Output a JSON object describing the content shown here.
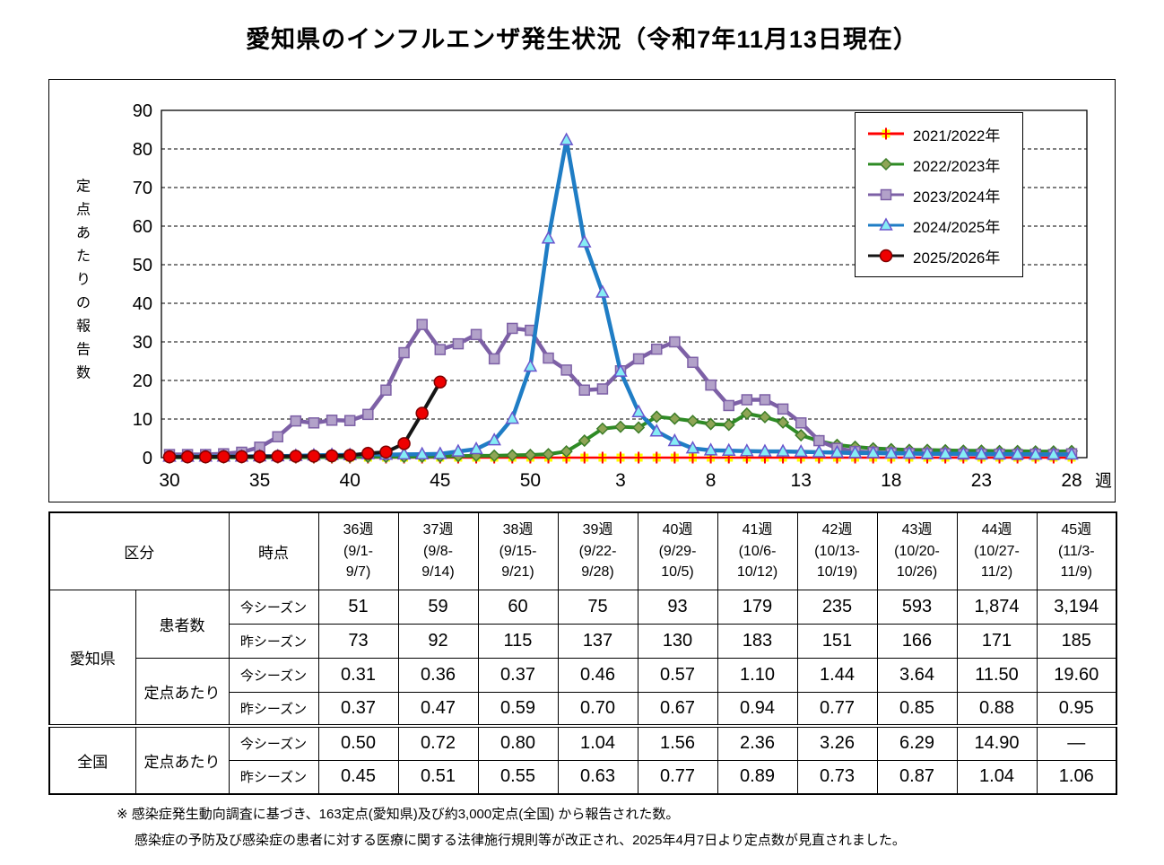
{
  "title": "愛知県のインフルエンザ発生状況（令和7年11月13日現在）",
  "chart_data": {
    "type": "line",
    "grid": "horizontal-dashed",
    "legend_position": "top-right",
    "y_axis": {
      "label": "定点あたりの報告数",
      "min": 0,
      "max": 90,
      "tick_step": 10
    },
    "x_axis": {
      "unit_label": "週",
      "weeks": [
        30,
        31,
        32,
        33,
        34,
        35,
        36,
        37,
        38,
        39,
        40,
        41,
        42,
        43,
        44,
        45,
        46,
        47,
        48,
        49,
        50,
        51,
        52,
        1,
        2,
        3,
        4,
        5,
        6,
        7,
        8,
        9,
        10,
        11,
        12,
        13,
        14,
        15,
        16,
        17,
        18,
        19,
        20,
        21,
        22,
        23,
        24,
        25,
        26,
        27,
        28
      ],
      "major_tick_labels": [
        "30",
        "35",
        "40",
        "45",
        "50",
        "3",
        "8",
        "13",
        "18",
        "23",
        "28"
      ]
    },
    "series": [
      {
        "name": "2021/2022年",
        "line_color": "#FF0000",
        "marker": "plus-square",
        "marker_fill": "#FFFF00",
        "marker_stroke": "#FF0000",
        "line_width": 2.5,
        "values": [
          0,
          0,
          0,
          0,
          0,
          0,
          0,
          0,
          0,
          0,
          0,
          0,
          0,
          0,
          0,
          0,
          0,
          0,
          0,
          0,
          0,
          0,
          0,
          0,
          0,
          0,
          0,
          0,
          0,
          0,
          0,
          0,
          0,
          0,
          0,
          0,
          0,
          0,
          0,
          0,
          0,
          0,
          0,
          0,
          0,
          0,
          0,
          0,
          0,
          0,
          0
        ]
      },
      {
        "name": "2022/2023年",
        "line_color": "#2E8B25",
        "marker": "diamond",
        "marker_fill": "#8FA556",
        "marker_stroke": "#3C7D28",
        "line_width": 4,
        "values": [
          0.05,
          0.05,
          0.05,
          0.05,
          0.1,
          0.1,
          0.1,
          0.1,
          0.1,
          0.15,
          0.15,
          0.2,
          0.2,
          0.2,
          0.25,
          0.3,
          0.4,
          0.5,
          0.5,
          0.6,
          0.7,
          0.9,
          1.6,
          4.4,
          7.5,
          8.0,
          7.8,
          10.6,
          10.1,
          9.5,
          8.7,
          8.5,
          11.4,
          10.5,
          9.1,
          5.8,
          4.3,
          3.3,
          2.8,
          2.4,
          2.2,
          2.0,
          2.0,
          1.9,
          1.8,
          1.8,
          1.7,
          1.7,
          1.6,
          1.6,
          1.7
        ]
      },
      {
        "name": "2023/2024年",
        "line_color": "#7D60A6",
        "marker": "square",
        "marker_fill": "#B2A1C9",
        "marker_stroke": "#7D60A6",
        "line_width": 4.5,
        "values": [
          0.8,
          0.8,
          0.8,
          1.0,
          1.4,
          2.7,
          5.4,
          9.5,
          9.0,
          9.7,
          9.6,
          11.2,
          17.5,
          27.2,
          34.5,
          28.0,
          29.5,
          31.9,
          25.6,
          33.5,
          33.0,
          25.8,
          22.7,
          17.5,
          17.8,
          22.5,
          25.6,
          28.1,
          30.0,
          24.7,
          18.8,
          13.5,
          15.0,
          15.0,
          12.6,
          9.0,
          4.4,
          2.4,
          1.6,
          1.4,
          1.2,
          1.1,
          1.0,
          1.0,
          0.9,
          0.9,
          0.9,
          0.8,
          0.9,
          0.8,
          1.0
        ]
      },
      {
        "name": "2024/2025年",
        "line_color": "#1F7DC5",
        "marker": "triangle",
        "marker_fill": "#85EDF5",
        "marker_stroke": "#6A55CC",
        "line_width": 4.5,
        "values": [
          0.25,
          0.25,
          0.3,
          0.3,
          0.3,
          0.35,
          0.37,
          0.47,
          0.59,
          0.7,
          0.67,
          0.94,
          0.77,
          0.85,
          0.88,
          0.95,
          1.6,
          2.2,
          4.5,
          10.1,
          23.6,
          56.8,
          82.3,
          55.8,
          42.8,
          22.3,
          11.8,
          6.8,
          4.3,
          2.4,
          1.9,
          1.8,
          1.7,
          1.6,
          1.6,
          1.5,
          1.4,
          1.3,
          1.2,
          1.2,
          1.1,
          1.1,
          1.0,
          1.0,
          1.0,
          0.9,
          0.9,
          0.9,
          0.8,
          0.8,
          0.8
        ]
      },
      {
        "name": "2025/2026年",
        "line_color": "#151515",
        "marker": "circle",
        "marker_fill": "#EE0000",
        "marker_stroke": "#7F0000",
        "line_width": 4,
        "values": [
          0.2,
          0.2,
          0.2,
          0.25,
          0.25,
          0.3,
          0.31,
          0.36,
          0.37,
          0.46,
          0.57,
          1.1,
          1.44,
          3.64,
          11.5,
          19.6,
          null,
          null,
          null,
          null,
          null,
          null,
          null,
          null,
          null,
          null,
          null,
          null,
          null,
          null,
          null,
          null,
          null,
          null,
          null,
          null,
          null,
          null,
          null,
          null,
          null,
          null,
          null,
          null,
          null,
          null,
          null,
          null,
          null,
          null,
          null
        ]
      }
    ]
  },
  "table": {
    "header": {
      "kubun": "区分",
      "jiten": "時点",
      "weeks": [
        {
          "week": "36週",
          "d1": "(9/1-",
          "d2": "9/7)"
        },
        {
          "week": "37週",
          "d1": "(9/8-",
          "d2": "9/14)"
        },
        {
          "week": "38週",
          "d1": "(9/15-",
          "d2": "9/21)"
        },
        {
          "week": "39週",
          "d1": "(9/22-",
          "d2": "9/28)"
        },
        {
          "week": "40週",
          "d1": "(9/29-",
          "d2": "10/5)"
        },
        {
          "week": "41週",
          "d1": "(10/6-",
          "d2": "10/12)"
        },
        {
          "week": "42週",
          "d1": "(10/13-",
          "d2": "10/19)"
        },
        {
          "week": "43週",
          "d1": "(10/20-",
          "d2": "10/26)"
        },
        {
          "week": "44週",
          "d1": "(10/27-",
          "d2": "11/2)"
        },
        {
          "week": "45週",
          "d1": "(11/3-",
          "d2": "11/9)"
        }
      ]
    },
    "regions": [
      {
        "name": "愛知県",
        "groups": [
          {
            "name": "患者数",
            "rows": [
              {
                "label": "今シーズン",
                "values": [
                  "51",
                  "59",
                  "60",
                  "75",
                  "93",
                  "179",
                  "235",
                  "593",
                  "1,874",
                  "3,194"
                ]
              },
              {
                "label": "昨シーズン",
                "values": [
                  "73",
                  "92",
                  "115",
                  "137",
                  "130",
                  "183",
                  "151",
                  "166",
                  "171",
                  "185"
                ]
              }
            ]
          },
          {
            "name": "定点あたり",
            "rows": [
              {
                "label": "今シーズン",
                "values": [
                  "0.31",
                  "0.36",
                  "0.37",
                  "0.46",
                  "0.57",
                  "1.10",
                  "1.44",
                  "3.64",
                  "11.50",
                  "19.60"
                ]
              },
              {
                "label": "昨シーズン",
                "values": [
                  "0.37",
                  "0.47",
                  "0.59",
                  "0.70",
                  "0.67",
                  "0.94",
                  "0.77",
                  "0.85",
                  "0.88",
                  "0.95"
                ]
              }
            ]
          }
        ]
      },
      {
        "name": "全国",
        "groups": [
          {
            "name": "定点あたり",
            "rows": [
              {
                "label": "今シーズン",
                "values": [
                  "0.50",
                  "0.72",
                  "0.80",
                  "1.04",
                  "1.56",
                  "2.36",
                  "3.26",
                  "6.29",
                  "14.90",
                  "―"
                ]
              },
              {
                "label": "昨シーズン",
                "values": [
                  "0.45",
                  "0.51",
                  "0.55",
                  "0.63",
                  "0.77",
                  "0.89",
                  "0.73",
                  "0.87",
                  "1.04",
                  "1.06"
                ]
              }
            ]
          }
        ]
      }
    ]
  },
  "footnotes": [
    "※ 感染症発生動向調査に基づき、163定点(愛知県)及び約3,000定点(全国) から報告された数。",
    "感染症の予防及び感染症の患者に対する医療に関する法律施行規則等が改正され、2025年4月7日より定点数が見直されました。"
  ]
}
